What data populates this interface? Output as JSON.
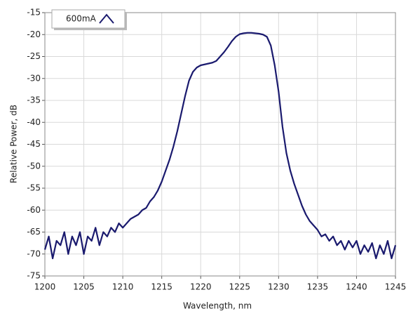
{
  "chart_data": {
    "type": "line",
    "xlabel": "Wavelength, nm",
    "ylabel": "Relative Power, dB",
    "x": [
      1200,
      1200.5,
      1201,
      1201.5,
      1202,
      1202.5,
      1203,
      1203.5,
      1204,
      1204.5,
      1205,
      1205.5,
      1206,
      1206.5,
      1207,
      1207.5,
      1208,
      1208.5,
      1209,
      1209.5,
      1210,
      1210.5,
      1211,
      1211.5,
      1212,
      1212.5,
      1213,
      1213.5,
      1214,
      1214.5,
      1215,
      1215.5,
      1216,
      1216.5,
      1217,
      1217.5,
      1218,
      1218.5,
      1219,
      1219.5,
      1220,
      1220.5,
      1221,
      1221.5,
      1222,
      1222.5,
      1223,
      1223.5,
      1224,
      1224.5,
      1225,
      1225.5,
      1226,
      1226.5,
      1227,
      1227.5,
      1228,
      1228.5,
      1229,
      1229.5,
      1230,
      1230.5,
      1231,
      1231.5,
      1232,
      1232.5,
      1233,
      1233.5,
      1234,
      1234.5,
      1235,
      1235.5,
      1236,
      1236.5,
      1237,
      1237.5,
      1238,
      1238.5,
      1239,
      1239.5,
      1240,
      1240.5,
      1241,
      1241.5,
      1242,
      1242.5,
      1243,
      1243.5,
      1244,
      1244.5,
      1245
    ],
    "series": [
      {
        "name": "600mA",
        "color": "#1a1a6e",
        "values": [
          -69,
          -66,
          -71,
          -67,
          -68,
          -65,
          -70,
          -66,
          -68,
          -65,
          -70,
          -66,
          -67,
          -64,
          -68,
          -65,
          -66,
          -64,
          -65,
          -63,
          -64,
          -63,
          -62,
          -61.5,
          -61,
          -60,
          -59.5,
          -58,
          -57,
          -55.5,
          -53.5,
          -51,
          -48.5,
          -45.5,
          -42,
          -38,
          -34,
          -30.5,
          -28.5,
          -27.5,
          -27,
          -26.8,
          -26.6,
          -26.4,
          -26,
          -25,
          -24,
          -22.8,
          -21.5,
          -20.5,
          -19.9,
          -19.7,
          -19.6,
          -19.6,
          -19.7,
          -19.8,
          -20,
          -20.5,
          -22.5,
          -27,
          -33,
          -41,
          -47,
          -51,
          -54,
          -56.5,
          -59,
          -61,
          -62.5,
          -63.5,
          -64.5,
          -66,
          -65.5,
          -67,
          -66,
          -68,
          -67,
          -69,
          -67,
          -68.5,
          -67,
          -70,
          -68,
          -69.5,
          -67.5,
          -71,
          -68,
          -70,
          -67,
          -71,
          -68
        ]
      }
    ],
    "xlim": [
      1200,
      1245
    ],
    "xticks": [
      1200,
      1205,
      1210,
      1215,
      1220,
      1225,
      1230,
      1235,
      1240,
      1245
    ],
    "ylim": [
      -75,
      -15
    ],
    "yticks": [
      -15,
      -20,
      -25,
      -30,
      -35,
      -40,
      -45,
      -50,
      -55,
      -60,
      -65,
      -70,
      -75
    ],
    "grid": true,
    "legend": "upper-left"
  }
}
